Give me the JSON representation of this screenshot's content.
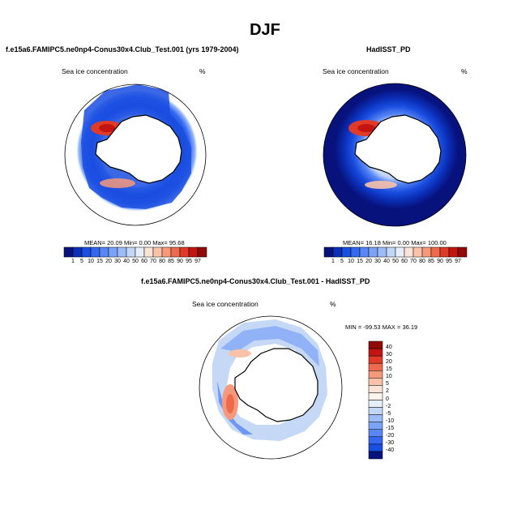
{
  "season": "DJF",
  "panels": [
    {
      "title": "f.e15a6.FAMIPC5.ne0np4-Conus30x4.Club_Test.001 (yrs 1979-2004)",
      "left_label": "Sea ice concentration",
      "right_label": "%",
      "stats": "MEAN=  20.09  Min=   0.00  Max=  95.68"
    },
    {
      "title": "HadISST_PD",
      "left_label": "Sea ice concentration",
      "right_label": "%",
      "stats": "MEAN=  16.18  Min=   0.00  Max= 100.00"
    },
    {
      "title": "f.e15a6.FAMIPC5.ne0np4-Conus30x4.Club_Test.001 - HadISST_PD",
      "left_label": "Sea ice concentration",
      "right_label": "%",
      "stats": "MIN = -99.53 MAX =  36.19"
    }
  ],
  "chart_data": [
    {
      "type": "heatmap",
      "projection": "south-polar-stereographic",
      "title": "f.e15a6.FAMIPC5.ne0np4-Conus30x4.Club_Test.001 (yrs 1979-2004)",
      "variable": "Sea ice concentration",
      "units": "%",
      "mean": 20.09,
      "min": 0.0,
      "max": 95.68,
      "colorbar_levels": [
        1,
        5,
        10,
        15,
        20,
        30,
        40,
        50,
        60,
        70,
        80,
        85,
        90,
        95,
        97
      ],
      "colorbar_colors": [
        "#08127d",
        "#0a2fb8",
        "#1a4ee0",
        "#3568f0",
        "#5886f5",
        "#7aa3f7",
        "#9dbcf7",
        "#c2d6f5",
        "#e6eef8",
        "#fbe3d7",
        "#f9c2a9",
        "#f5997a",
        "#ee6a4c",
        "#e03b28",
        "#c21512",
        "#8f0a08"
      ]
    },
    {
      "type": "heatmap",
      "projection": "south-polar-stereographic",
      "title": "HadISST_PD",
      "variable": "Sea ice concentration",
      "units": "%",
      "mean": 16.18,
      "min": 0.0,
      "max": 100.0,
      "colorbar_levels": [
        1,
        5,
        10,
        15,
        20,
        30,
        40,
        50,
        60,
        70,
        80,
        85,
        90,
        95,
        97
      ],
      "colorbar_colors": [
        "#08127d",
        "#0a2fb8",
        "#1a4ee0",
        "#3568f0",
        "#5886f5",
        "#7aa3f7",
        "#9dbcf7",
        "#c2d6f5",
        "#e6eef8",
        "#fbe3d7",
        "#f9c2a9",
        "#f5997a",
        "#ee6a4c",
        "#e03b28",
        "#c21512",
        "#8f0a08"
      ]
    },
    {
      "type": "heatmap",
      "projection": "south-polar-stereographic",
      "title": "f.e15a6.FAMIPC5.ne0np4-Conus30x4.Club_Test.001 - HadISST_PD",
      "variable": "Sea ice concentration",
      "units": "%",
      "min": -99.53,
      "max": 36.19,
      "colorbar_levels": [
        40,
        30,
        20,
        15,
        10,
        5,
        2,
        0,
        -2,
        -5,
        -10,
        -15,
        -20,
        -30,
        -40
      ],
      "colorbar_colors": [
        "#8f0a08",
        "#c21512",
        "#e03b28",
        "#ee6a4c",
        "#f5997a",
        "#f9c2a9",
        "#fbe3d7",
        "#fdf3ee",
        "#e6eef8",
        "#c2d6f5",
        "#9dbcf7",
        "#7aa3f7",
        "#5886f5",
        "#3568f0",
        "#1a4ee0",
        "#08127d"
      ]
    }
  ]
}
